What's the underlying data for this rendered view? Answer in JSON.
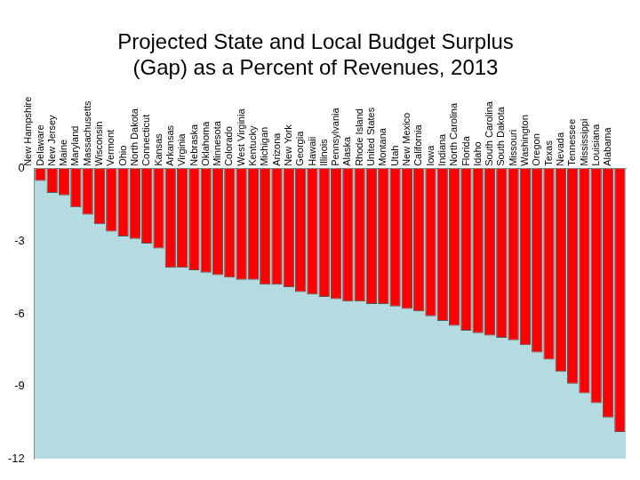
{
  "chart_data": {
    "type": "bar",
    "title": [
      "Projected State and Local Budget Surplus",
      "(Gap) as a Percent of Revenues, 2013"
    ],
    "categories": [
      "New Hampshire",
      "Delaware",
      "New Jersey",
      "Maine",
      "Maryland",
      "Massachusetts",
      "Wisconsin",
      "Vermont",
      "Ohio",
      "North Dakota",
      "Connecticut",
      "Kansas",
      "Arkansas",
      "Virginia",
      "Nebraska",
      "Oklahoma",
      "Minnesota",
      "Colorado",
      "West Virginia",
      "Kentucky",
      "Michigan",
      "Arizona",
      "New York",
      "Georgia",
      "Hawaii",
      "Illinois",
      "Pennsylvania",
      "Alaska",
      "Rhode Island",
      "United States",
      "Montana",
      "Utah",
      "New Mexico",
      "California",
      "Iowa",
      "Indiana",
      "North Carolina",
      "Florida",
      "Idaho",
      "South Carolina",
      "South Dakota",
      "Missouri",
      "Washington",
      "Oregon",
      "Texas",
      "Nevada",
      "Tennessee",
      "Mississippi",
      "Louisiana",
      "Alabama"
    ],
    "values": [
      -0.5,
      -1.0,
      -1.1,
      -1.6,
      -1.9,
      -2.3,
      -2.6,
      -2.8,
      -2.9,
      -3.1,
      -3.3,
      -4.1,
      -4.1,
      -4.2,
      -4.3,
      -4.4,
      -4.5,
      -4.6,
      -4.6,
      -4.8,
      -4.8,
      -4.9,
      -5.1,
      -5.2,
      -5.3,
      -5.4,
      -5.5,
      -5.5,
      -5.6,
      -5.6,
      -5.7,
      -5.8,
      -5.9,
      -6.1,
      -6.3,
      -6.5,
      -6.7,
      -6.8,
      -6.9,
      -7.0,
      -7.1,
      -7.3,
      -7.6,
      -7.9,
      -8.4,
      -8.9,
      -9.3,
      -9.7,
      -10.3,
      -10.9
    ],
    "color": "#ff0000",
    "ylim": [
      -12,
      0
    ],
    "yticks": [
      0,
      -3,
      -6,
      -9,
      -12
    ],
    "grid": false
  }
}
